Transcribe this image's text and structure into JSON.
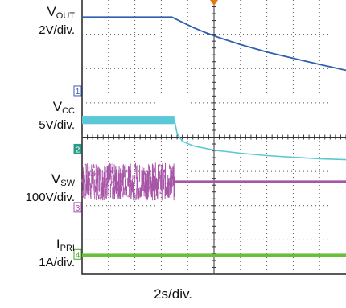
{
  "chart_data": {
    "type": "line",
    "title": "",
    "xlabel": "2s/div.",
    "x_range_div": [
      0,
      10
    ],
    "y_range_div": [
      0,
      8
    ],
    "grid": true,
    "trigger_marker": "orange-triangle",
    "series": [
      {
        "name": "VOUT",
        "label_main": "V",
        "label_sub": "OUT",
        "scale": "2V/div.",
        "color": "#2f5fb0",
        "channel_marker": "",
        "x": [
          0,
          1,
          2,
          3,
          3.4,
          3.8,
          4.2,
          4.6,
          5.2,
          6,
          7,
          8,
          9,
          10
        ],
        "y": [
          7.5,
          7.5,
          7.5,
          7.5,
          7.5,
          7.35,
          7.2,
          7.07,
          6.9,
          6.7,
          6.48,
          6.3,
          6.12,
          5.95
        ]
      },
      {
        "name": "VCC",
        "label_main": "V",
        "label_sub": "CC",
        "scale": "5V/div.",
        "color": "#5ac8d6",
        "channel_marker": "1",
        "x": [
          0,
          1,
          2,
          3,
          3.5,
          3.6,
          3.8,
          4.2,
          5,
          6,
          7,
          8,
          9,
          10
        ],
        "y": [
          4.5,
          4.5,
          4.5,
          4.5,
          4.5,
          4.1,
          3.88,
          3.75,
          3.62,
          3.53,
          3.46,
          3.41,
          3.37,
          3.34
        ]
      },
      {
        "name": "VSW",
        "label_main": "V",
        "label_sub": "SW",
        "scale": "100V/div.",
        "color": "#a855a8",
        "channel_marker": "3",
        "x": [
          0,
          3.5,
          3.5,
          10
        ],
        "y_noise_band": [
          2.15,
          3.25
        ],
        "y": [
          2.7,
          2.7,
          2.7,
          2.7
        ]
      },
      {
        "name": "IPRI",
        "label_main": "I",
        "label_sub": "PRI",
        "scale": "1A/div.",
        "color": "#6abf3a",
        "channel_marker": "4",
        "x": [
          0,
          10
        ],
        "y": [
          0.55,
          0.55
        ]
      }
    ],
    "channel_2_marker": "2"
  }
}
